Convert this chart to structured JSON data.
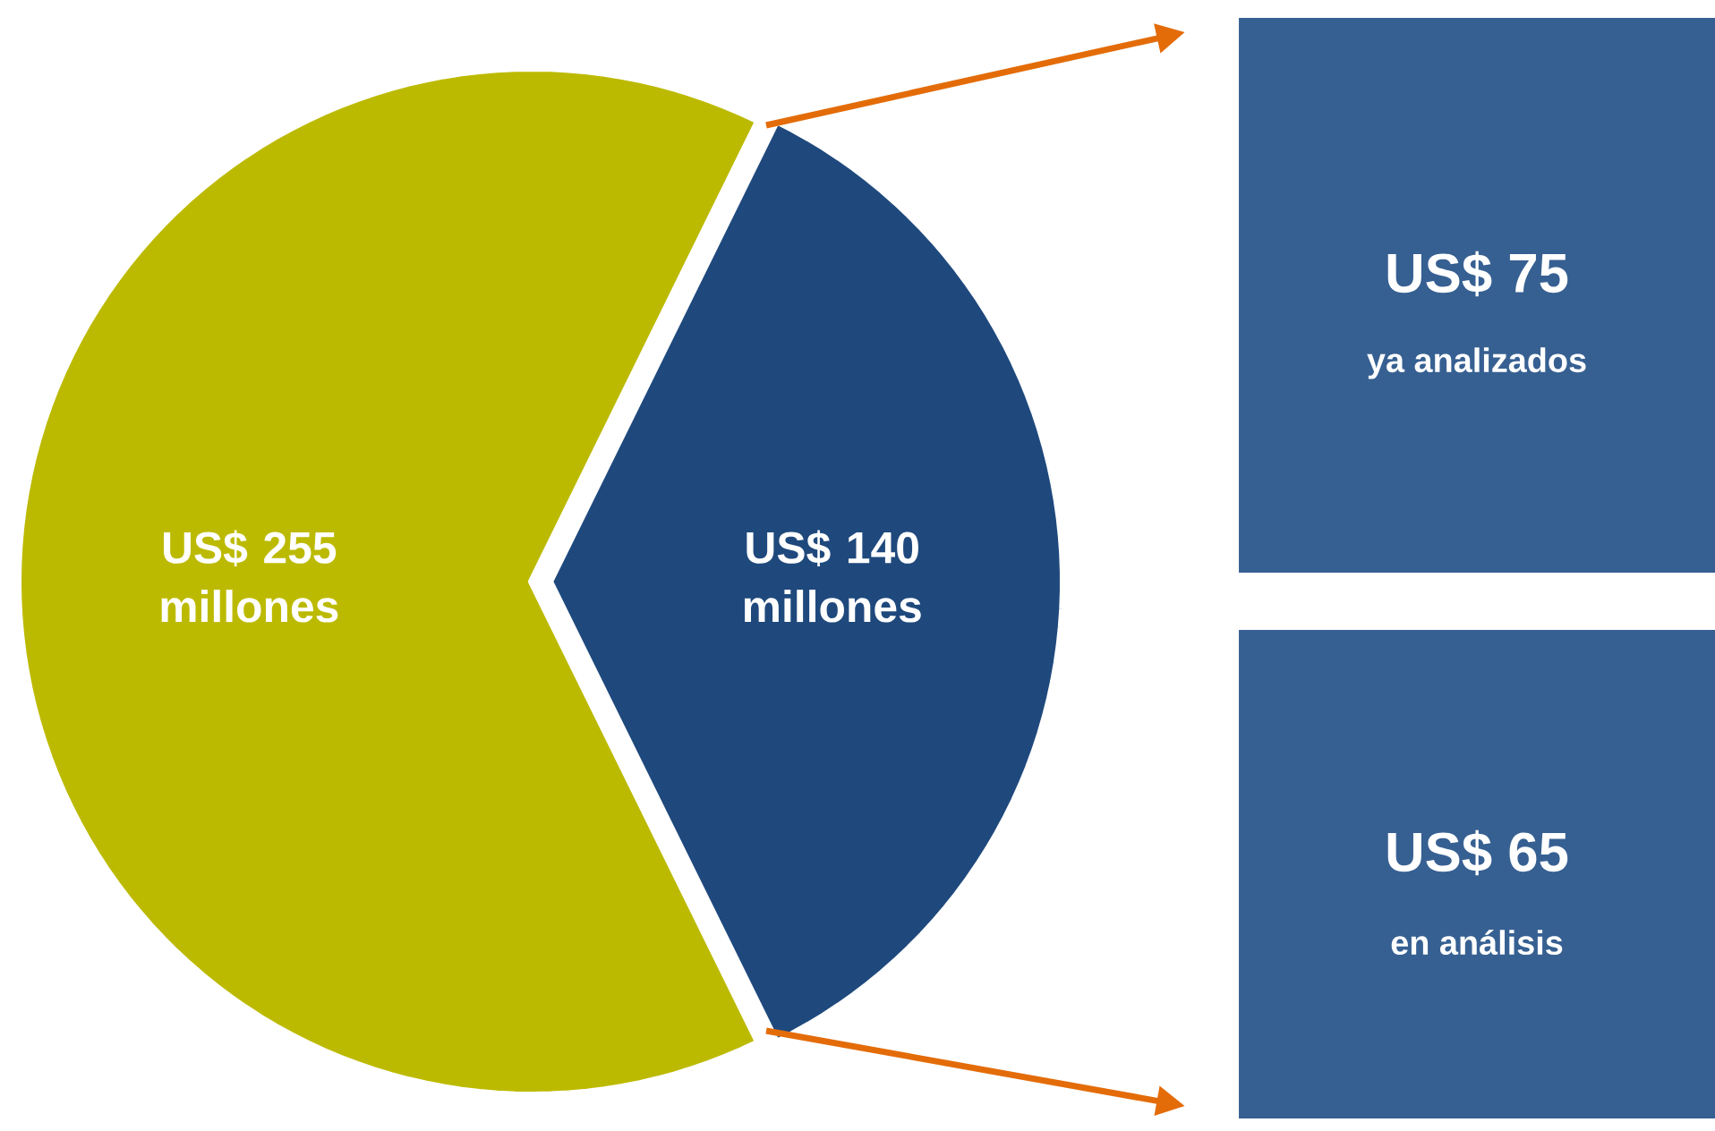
{
  "chart_data": [
    {
      "type": "pie",
      "categories": [
        null,
        null
      ],
      "values": [
        255,
        140
      ],
      "colors": [
        "#bcba00",
        "#1f497d"
      ],
      "value_labels": [
        "US$ 255 millones",
        "US$ 140 millones"
      ]
    },
    {
      "type": "other",
      "categories": [
        "ya analizados",
        "en análisis"
      ],
      "values": [
        75,
        65
      ],
      "colors": [
        "#376092",
        "#376092"
      ],
      "value_labels": [
        "US$ 75",
        "US$ 65"
      ]
    }
  ]
}
